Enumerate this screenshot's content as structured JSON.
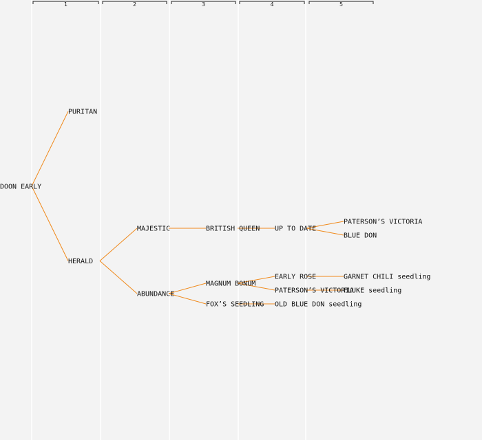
{
  "colors": {
    "background": "#f3f3f3",
    "edge": "#f08a1c",
    "label_default": "#111111",
    "label_highlight": "#1a1aa8",
    "column_separator": "#ffffff"
  },
  "generations": [
    "1",
    "2",
    "3",
    "4",
    "5"
  ],
  "nodes": [
    {
      "id": "doon-early",
      "label": "DOON EARLY",
      "generation": 0,
      "highlight": false
    },
    {
      "id": "puritan",
      "label": "PURITAN",
      "generation": 1,
      "highlight": false
    },
    {
      "id": "herald",
      "label": "HERALD",
      "generation": 1,
      "highlight": false
    },
    {
      "id": "majestic",
      "label": "MAJESTIC",
      "generation": 2,
      "highlight": false
    },
    {
      "id": "abundance",
      "label": "ABUNDANCE",
      "generation": 2,
      "highlight": false
    },
    {
      "id": "british-queen",
      "label": "BRITISH QUEEN",
      "generation": 3,
      "highlight": true
    },
    {
      "id": "magnum-bonum",
      "label": "MAGNUM BONUM",
      "generation": 3,
      "highlight": true
    },
    {
      "id": "foxs-seedling",
      "label": "FOX’S SEEDLING",
      "generation": 3,
      "highlight": false
    },
    {
      "id": "up-to-date",
      "label": "UP TO DATE",
      "generation": 4,
      "highlight": false
    },
    {
      "id": "early-rose",
      "label": "EARLY ROSE",
      "generation": 4,
      "highlight": false
    },
    {
      "id": "patersons-victoria-4",
      "label": "PATERSON’S VICTORIA",
      "generation": 4,
      "highlight": false
    },
    {
      "id": "old-blue-don-seedling",
      "label": "OLD BLUE DON seedling",
      "generation": 4,
      "highlight": false
    },
    {
      "id": "patersons-victoria-5",
      "label": "PATERSON’S VICTORIA",
      "generation": 5,
      "highlight": false
    },
    {
      "id": "blue-don",
      "label": "BLUE DON",
      "generation": 5,
      "highlight": false
    },
    {
      "id": "garnet-chili-seedling",
      "label": "GARNET CHILI seedling",
      "generation": 5,
      "highlight": false
    },
    {
      "id": "fluke-seedling",
      "label": "FLUKE seedling",
      "generation": 5,
      "highlight": false
    }
  ],
  "edges": [
    {
      "from": "doon-early",
      "to": "puritan"
    },
    {
      "from": "doon-early",
      "to": "herald"
    },
    {
      "from": "herald",
      "to": "majestic"
    },
    {
      "from": "herald",
      "to": "abundance"
    },
    {
      "from": "majestic",
      "to": "british-queen"
    },
    {
      "from": "abundance",
      "to": "magnum-bonum"
    },
    {
      "from": "abundance",
      "to": "foxs-seedling"
    },
    {
      "from": "british-queen",
      "to": "up-to-date"
    },
    {
      "from": "magnum-bonum",
      "to": "early-rose"
    },
    {
      "from": "magnum-bonum",
      "to": "patersons-victoria-4"
    },
    {
      "from": "foxs-seedling",
      "to": "old-blue-don-seedling"
    },
    {
      "from": "up-to-date",
      "to": "patersons-victoria-5"
    },
    {
      "from": "up-to-date",
      "to": "blue-don"
    },
    {
      "from": "early-rose",
      "to": "garnet-chili-seedling"
    },
    {
      "from": "patersons-victoria-4",
      "to": "fluke-seedling"
    }
  ]
}
